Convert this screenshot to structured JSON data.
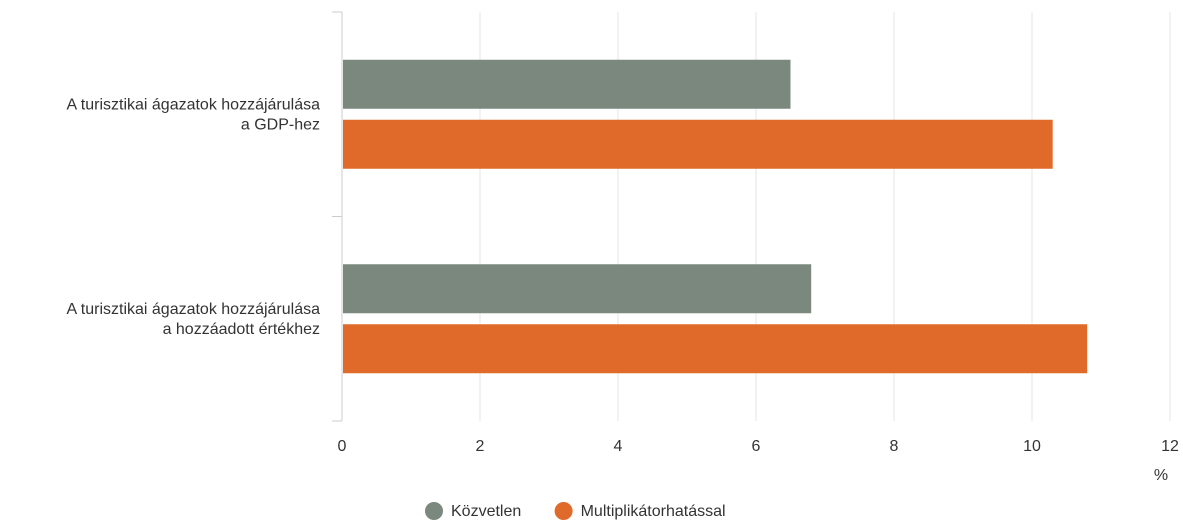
{
  "chart_data": {
    "type": "bar",
    "orientation": "horizontal",
    "categories": [
      [
        "A turisztikai ágazatok hozzájárulása",
        "a GDP-hez"
      ],
      [
        "A turisztikai ágazatok hozzájárulása",
        "a hozzáadott értékhez"
      ]
    ],
    "series": [
      {
        "name": "Közvetlen",
        "color": "#7b887d",
        "values": [
          6.5,
          6.8
        ]
      },
      {
        "name": "Multiplikátorhatással",
        "color": "#e06a2a",
        "values": [
          10.3,
          10.8
        ]
      }
    ],
    "x_ticks": [
      "0",
      "2",
      "4",
      "6",
      "8",
      "10",
      "12"
    ],
    "xlim": [
      0,
      12
    ],
    "xunit": "%",
    "grid": true,
    "legend_position": "bottom-center"
  }
}
